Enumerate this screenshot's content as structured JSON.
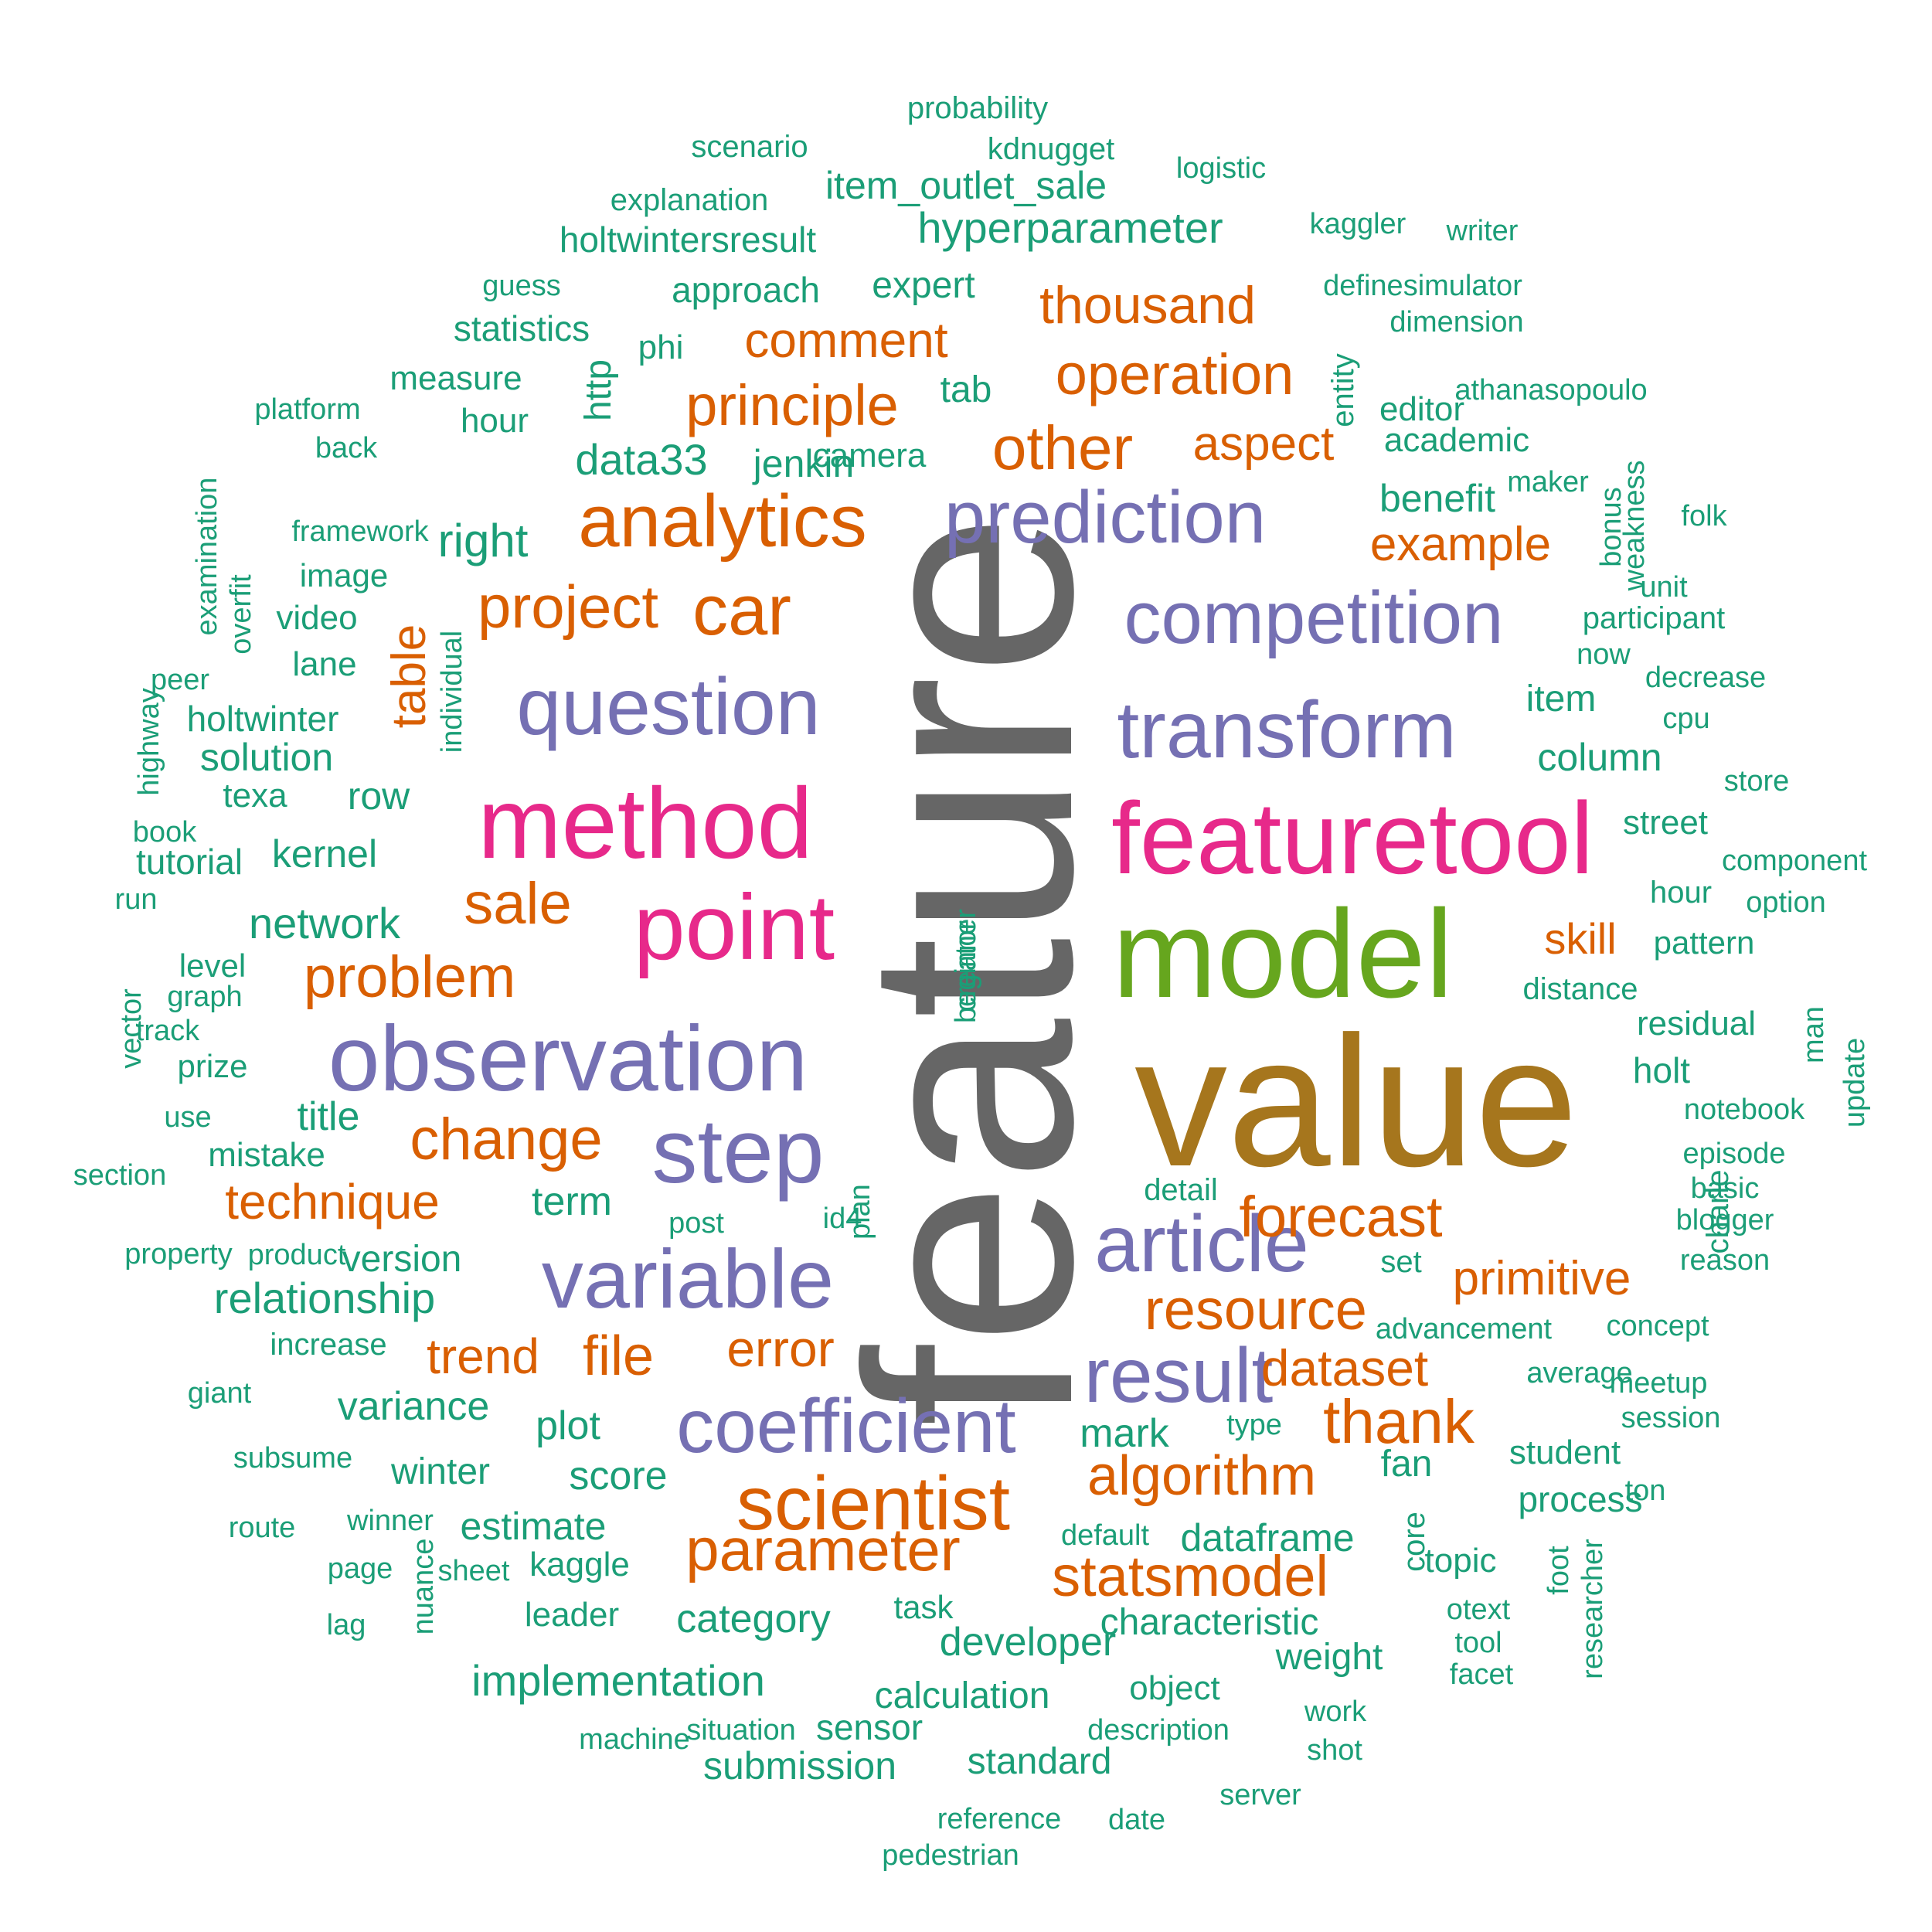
{
  "palette": {
    "green": "#1b9e77",
    "orange": "#d95f02",
    "purple": "#7570b3",
    "pink": "#e7298a",
    "lime": "#66a61e",
    "gold": "#a6761d",
    "gray": "#666666"
  },
  "words": [
    {
      "text": "feature",
      "color": "gray",
      "freq": 100,
      "rot": -90
    },
    {
      "text": "value",
      "color": "gold",
      "freq": 90
    },
    {
      "text": "model",
      "color": "lime",
      "freq": 72
    },
    {
      "text": "featuretool",
      "color": "pink",
      "freq": 62
    },
    {
      "text": "method",
      "color": "pink",
      "freq": 62
    },
    {
      "text": "point",
      "color": "pink",
      "freq": 58
    },
    {
      "text": "observation",
      "color": "purple",
      "freq": 54
    },
    {
      "text": "transform",
      "color": "purple",
      "freq": 50
    },
    {
      "text": "step",
      "color": "purple",
      "freq": 50
    },
    {
      "text": "question",
      "color": "purple",
      "freq": 48
    },
    {
      "text": "competition",
      "color": "purple",
      "freq": 46
    },
    {
      "text": "prediction",
      "color": "purple",
      "freq": 46
    },
    {
      "text": "variable",
      "color": "purple",
      "freq": 48
    },
    {
      "text": "coefficient",
      "color": "purple",
      "freq": 46
    },
    {
      "text": "article",
      "color": "purple",
      "freq": 44
    },
    {
      "text": "result",
      "color": "purple",
      "freq": 44
    },
    {
      "text": "analytics",
      "color": "orange",
      "freq": 42
    },
    {
      "text": "car",
      "color": "orange",
      "freq": 42
    },
    {
      "text": "scientist",
      "color": "orange",
      "freq": 42
    },
    {
      "text": "project",
      "color": "orange",
      "freq": 38
    },
    {
      "text": "statsmodel",
      "color": "orange",
      "freq": 36
    },
    {
      "text": "parameter",
      "color": "orange",
      "freq": 36
    },
    {
      "text": "algorithm",
      "color": "orange",
      "freq": 35
    },
    {
      "text": "other",
      "color": "orange",
      "freq": 34
    },
    {
      "text": "principle",
      "color": "orange",
      "freq": 34
    },
    {
      "text": "operation",
      "color": "orange",
      "freq": 33
    },
    {
      "text": "resource",
      "color": "orange",
      "freq": 34
    },
    {
      "text": "forecast",
      "color": "orange",
      "freq": 33
    },
    {
      "text": "thank",
      "color": "orange",
      "freq": 33
    },
    {
      "text": "problem",
      "color": "orange",
      "freq": 32
    },
    {
      "text": "change",
      "color": "orange",
      "freq": 32
    },
    {
      "text": "sale",
      "color": "orange",
      "freq": 33
    },
    {
      "text": "dataset",
      "color": "orange",
      "freq": 31
    },
    {
      "text": "file",
      "color": "orange",
      "freq": 31
    },
    {
      "text": "error",
      "color": "orange",
      "freq": 31
    },
    {
      "text": "thousand",
      "color": "orange",
      "freq": 31
    },
    {
      "text": "comment",
      "color": "orange",
      "freq": 30
    },
    {
      "text": "aspect",
      "color": "orange",
      "freq": 30
    },
    {
      "text": "primitive",
      "color": "orange",
      "freq": 29
    },
    {
      "text": "example",
      "color": "orange",
      "freq": 29
    },
    {
      "text": "technique",
      "color": "orange",
      "freq": 29
    },
    {
      "text": "trend",
      "color": "orange",
      "freq": 30
    },
    {
      "text": "table",
      "color": "orange",
      "freq": 27,
      "rot": -90
    },
    {
      "text": "skill",
      "color": "orange",
      "freq": 27
    },
    {
      "text": "data33",
      "color": "green",
      "freq": 27
    },
    {
      "text": "right",
      "color": "green",
      "freq": 26
    },
    {
      "text": "network",
      "color": "green",
      "freq": 26
    },
    {
      "text": "relationship",
      "color": "green",
      "freq": 26
    },
    {
      "text": "hyperparameter",
      "color": "green",
      "freq": 25
    },
    {
      "text": "implementation",
      "color": "green",
      "freq": 25
    },
    {
      "text": "item_outlet_sale",
      "color": "green",
      "freq": 24
    },
    {
      "text": "category",
      "color": "green",
      "freq": 25
    },
    {
      "text": "developer",
      "color": "green",
      "freq": 25
    },
    {
      "text": "score",
      "color": "green",
      "freq": 25
    },
    {
      "text": "term",
      "color": "green",
      "freq": 25
    },
    {
      "text": "variance",
      "color": "green",
      "freq": 25
    },
    {
      "text": "estimate",
      "color": "green",
      "freq": 25
    },
    {
      "text": "plot",
      "color": "green",
      "freq": 25
    },
    {
      "text": "mark",
      "color": "green",
      "freq": 25
    },
    {
      "text": "characteristic",
      "color": "green",
      "freq": 23
    },
    {
      "text": "calculation",
      "color": "green",
      "freq": 23
    },
    {
      "text": "standard",
      "color": "green",
      "freq": 23
    },
    {
      "text": "submission",
      "color": "green",
      "freq": 23
    },
    {
      "text": "dataframe",
      "color": "green",
      "freq": 23
    },
    {
      "text": "weight",
      "color": "green",
      "freq": 23
    },
    {
      "text": "winter",
      "color": "green",
      "freq": 23
    },
    {
      "text": "fan",
      "color": "green",
      "freq": 23
    },
    {
      "text": "title",
      "color": "green",
      "freq": 23
    },
    {
      "text": "kernel",
      "color": "green",
      "freq": 23
    },
    {
      "text": "row",
      "color": "green",
      "freq": 23
    },
    {
      "text": "solution",
      "color": "green",
      "freq": 23
    },
    {
      "text": "jenkin",
      "color": "green",
      "freq": 23
    },
    {
      "text": "expert",
      "color": "green",
      "freq": 23
    },
    {
      "text": "approach",
      "color": "green",
      "freq": 22
    },
    {
      "text": "holtwintersresult",
      "color": "green",
      "freq": 22
    },
    {
      "text": "statistics",
      "color": "green",
      "freq": 22
    },
    {
      "text": "measure",
      "color": "green",
      "freq": 22
    },
    {
      "text": "hour",
      "color": "green",
      "freq": 22
    },
    {
      "text": "tab",
      "color": "green",
      "freq": 22
    },
    {
      "text": "editor",
      "color": "green",
      "freq": 21
    },
    {
      "text": "academic",
      "color": "green",
      "freq": 21
    },
    {
      "text": "benefit",
      "color": "green",
      "freq": 22
    },
    {
      "text": "item",
      "color": "green",
      "freq": 22
    },
    {
      "text": "column",
      "color": "green",
      "freq": 22
    },
    {
      "text": "residual",
      "color": "green",
      "freq": 21
    },
    {
      "text": "holt",
      "color": "green",
      "freq": 21
    },
    {
      "text": "process",
      "color": "green",
      "freq": 21
    },
    {
      "text": "topic",
      "color": "green",
      "freq": 21
    },
    {
      "text": "student",
      "color": "green",
      "freq": 21
    },
    {
      "text": "version",
      "color": "green",
      "freq": 22
    },
    {
      "text": "tutorial",
      "color": "green",
      "freq": 21
    },
    {
      "text": "holtwinter",
      "color": "green",
      "freq": 21
    },
    {
      "text": "lane",
      "color": "green",
      "freq": 21
    },
    {
      "text": "video",
      "color": "green",
      "freq": 21
    },
    {
      "text": "image",
      "color": "green",
      "freq": 21
    },
    {
      "text": "camera",
      "color": "green",
      "freq": 21
    },
    {
      "text": "texa",
      "color": "green",
      "freq": 21
    },
    {
      "text": "mistake",
      "color": "green",
      "freq": 21
    },
    {
      "text": "kaggle",
      "color": "green",
      "freq": 21
    },
    {
      "text": "leader",
      "color": "green",
      "freq": 21
    },
    {
      "text": "sensor",
      "color": "green",
      "freq": 21
    },
    {
      "text": "object",
      "color": "green",
      "freq": 21
    },
    {
      "text": "phi",
      "color": "green",
      "freq": 21
    },
    {
      "text": "level",
      "color": "green",
      "freq": 20
    },
    {
      "text": "prize",
      "color": "green",
      "freq": 20
    },
    {
      "text": "increase",
      "color": "green",
      "freq": 20
    },
    {
      "text": "task",
      "color": "green",
      "freq": 20
    },
    {
      "text": "street",
      "color": "green",
      "freq": 20
    },
    {
      "text": "hour",
      "color": "green",
      "freq": 20
    },
    {
      "text": "pattern",
      "color": "green",
      "freq": 20
    },
    {
      "text": "distance",
      "color": "green",
      "freq": 19
    },
    {
      "text": "set",
      "color": "green",
      "freq": 19
    },
    {
      "text": "detail",
      "color": "green",
      "freq": 19
    },
    {
      "text": "http",
      "color": "green",
      "freq": 20,
      "rot": -90
    },
    {
      "text": "entity",
      "color": "green",
      "freq": 19,
      "rot": -90
    },
    {
      "text": "core",
      "color": "green",
      "freq": 19,
      "rot": -90
    },
    {
      "text": "charle",
      "color": "green",
      "freq": 19,
      "rot": -90
    },
    {
      "text": "participant",
      "color": "green",
      "freq": 19
    },
    {
      "text": "probability",
      "color": "green",
      "freq": 18
    },
    {
      "text": "scenario",
      "color": "green",
      "freq": 18
    },
    {
      "text": "kdnugget",
      "color": "green",
      "freq": 18
    },
    {
      "text": "logistic",
      "color": "green",
      "freq": 18
    },
    {
      "text": "explanation",
      "color": "green",
      "freq": 18
    },
    {
      "text": "kaggler",
      "color": "green",
      "freq": 17
    },
    {
      "text": "writer",
      "color": "green",
      "freq": 17
    },
    {
      "text": "guess",
      "color": "green",
      "freq": 17
    },
    {
      "text": "definesimulator",
      "color": "green",
      "freq": 17
    },
    {
      "text": "dimension",
      "color": "green",
      "freq": 17
    },
    {
      "text": "athanasopoulo",
      "color": "green",
      "freq": 17
    },
    {
      "text": "maker",
      "color": "green",
      "freq": 17
    },
    {
      "text": "folk",
      "color": "green",
      "freq": 17
    },
    {
      "text": "unit",
      "color": "green",
      "freq": 17
    },
    {
      "text": "decrease",
      "color": "green",
      "freq": 17
    },
    {
      "text": "now",
      "color": "green",
      "freq": 17
    },
    {
      "text": "cpu",
      "color": "green",
      "freq": 17
    },
    {
      "text": "store",
      "color": "green",
      "freq": 17
    },
    {
      "text": "component",
      "color": "green",
      "freq": 17
    },
    {
      "text": "option",
      "color": "green",
      "freq": 17
    },
    {
      "text": "notebook",
      "color": "green",
      "freq": 17
    },
    {
      "text": "episode",
      "color": "green",
      "freq": 17
    },
    {
      "text": "basic",
      "color": "green",
      "freq": 17
    },
    {
      "text": "blogger",
      "color": "green",
      "freq": 17
    },
    {
      "text": "reason",
      "color": "green",
      "freq": 17
    },
    {
      "text": "concept",
      "color": "green",
      "freq": 17
    },
    {
      "text": "meetup",
      "color": "green",
      "freq": 17
    },
    {
      "text": "average",
      "color": "green",
      "freq": 17
    },
    {
      "text": "session",
      "color": "green",
      "freq": 17
    },
    {
      "text": "ton",
      "color": "green",
      "freq": 18
    },
    {
      "text": "advancement",
      "color": "green",
      "freq": 17
    },
    {
      "text": "type",
      "color": "green",
      "freq": 17
    },
    {
      "text": "default",
      "color": "green",
      "freq": 17
    },
    {
      "text": "otext",
      "color": "green",
      "freq": 17
    },
    {
      "text": "tool",
      "color": "green",
      "freq": 17
    },
    {
      "text": "facet",
      "color": "green",
      "freq": 17
    },
    {
      "text": "work",
      "color": "green",
      "freq": 17
    },
    {
      "text": "shot",
      "color": "green",
      "freq": 17
    },
    {
      "text": "description",
      "color": "green",
      "freq": 17
    },
    {
      "text": "server",
      "color": "green",
      "freq": 17
    },
    {
      "text": "date",
      "color": "green",
      "freq": 17
    },
    {
      "text": "reference",
      "color": "green",
      "freq": 17
    },
    {
      "text": "pedestrian",
      "color": "green",
      "freq": 17
    },
    {
      "text": "situation",
      "color": "green",
      "freq": 17
    },
    {
      "text": "machine",
      "color": "green",
      "freq": 17
    },
    {
      "text": "sheet",
      "color": "green",
      "freq": 17
    },
    {
      "text": "page",
      "color": "green",
      "freq": 17
    },
    {
      "text": "lag",
      "color": "green",
      "freq": 17
    },
    {
      "text": "route",
      "color": "green",
      "freq": 17
    },
    {
      "text": "winner",
      "color": "green",
      "freq": 17
    },
    {
      "text": "subsume",
      "color": "green",
      "freq": 17
    },
    {
      "text": "giant",
      "color": "green",
      "freq": 17
    },
    {
      "text": "property",
      "color": "green",
      "freq": 17
    },
    {
      "text": "product",
      "color": "green",
      "freq": 17
    },
    {
      "text": "post",
      "color": "green",
      "freq": 17
    },
    {
      "text": "id4",
      "color": "green",
      "freq": 17
    },
    {
      "text": "section",
      "color": "green",
      "freq": 17
    },
    {
      "text": "use",
      "color": "green",
      "freq": 17
    },
    {
      "text": "track",
      "color": "green",
      "freq": 17
    },
    {
      "text": "graph",
      "color": "green",
      "freq": 17
    },
    {
      "text": "run",
      "color": "green",
      "freq": 17
    },
    {
      "text": "book",
      "color": "green",
      "freq": 17
    },
    {
      "text": "peer",
      "color": "green",
      "freq": 17
    },
    {
      "text": "framework",
      "color": "green",
      "freq": 17
    },
    {
      "text": "platform",
      "color": "green",
      "freq": 17
    },
    {
      "text": "back",
      "color": "green",
      "freq": 17
    },
    {
      "text": "examination",
      "color": "green",
      "freq": 17,
      "rot": -90
    },
    {
      "text": "overfit",
      "color": "green",
      "freq": 17,
      "rot": -90
    },
    {
      "text": "individual",
      "color": "green",
      "freq": 17,
      "rot": -90
    },
    {
      "text": "highway",
      "color": "green",
      "freq": 17,
      "rot": -90
    },
    {
      "text": "vector",
      "color": "green",
      "freq": 17,
      "rot": -90
    },
    {
      "text": "plan",
      "color": "green",
      "freq": 17,
      "rot": -90
    },
    {
      "text": "nuance",
      "color": "green",
      "freq": 17,
      "rot": -90
    },
    {
      "text": "foot",
      "color": "green",
      "freq": 17,
      "rot": -90
    },
    {
      "text": "researcher",
      "color": "green",
      "freq": 17,
      "rot": -90
    },
    {
      "text": "man",
      "color": "green",
      "freq": 17,
      "rot": -90
    },
    {
      "text": "update",
      "color": "green",
      "freq": 17,
      "rot": -90
    },
    {
      "text": "bonus",
      "color": "green",
      "freq": 17,
      "rot": -90
    },
    {
      "text": "weakness",
      "color": "green",
      "freq": 17,
      "rot": -90
    },
    {
      "text": "creator",
      "color": "green",
      "freq": 17,
      "rot": -90
    },
    {
      "text": "beginner",
      "color": "green",
      "freq": 17,
      "rot": -90
    }
  ]
}
